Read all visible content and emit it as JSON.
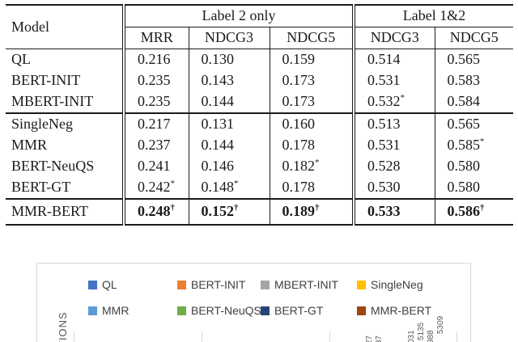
{
  "table": {
    "model_header": "Model",
    "groups": [
      {
        "label": "Label 2 only",
        "cols": [
          "MRR",
          "NDCG3",
          "NDCG5"
        ]
      },
      {
        "label": "Label 1&2",
        "cols": [
          "NDCG3",
          "NDCG5"
        ]
      }
    ],
    "sections": [
      {
        "rows": [
          {
            "model": "QL",
            "cells": [
              {
                "v": "0.216"
              },
              {
                "v": "0.130"
              },
              {
                "v": "0.159"
              },
              {
                "v": "0.514"
              },
              {
                "v": "0.565"
              }
            ]
          },
          {
            "model": "BERT-INIT",
            "cells": [
              {
                "v": "0.235"
              },
              {
                "v": "0.143"
              },
              {
                "v": "0.173"
              },
              {
                "v": "0.531"
              },
              {
                "v": "0.583"
              }
            ]
          },
          {
            "model": "MBERT-INIT",
            "cells": [
              {
                "v": "0.235"
              },
              {
                "v": "0.144"
              },
              {
                "v": "0.173"
              },
              {
                "v": "0.532",
                "s": "*"
              },
              {
                "v": "0.584"
              }
            ]
          }
        ]
      },
      {
        "rows": [
          {
            "model": "SingleNeg",
            "cells": [
              {
                "v": "0.217"
              },
              {
                "v": "0.131"
              },
              {
                "v": "0.160"
              },
              {
                "v": "0.513"
              },
              {
                "v": "0.565"
              }
            ]
          },
          {
            "model": "MMR",
            "cells": [
              {
                "v": "0.237"
              },
              {
                "v": "0.144"
              },
              {
                "v": "0.178"
              },
              {
                "v": "0.531"
              },
              {
                "v": "0.585",
                "s": "*"
              }
            ]
          },
          {
            "model": "BERT-NeuQS",
            "cells": [
              {
                "v": "0.241"
              },
              {
                "v": "0.146"
              },
              {
                "v": "0.182",
                "s": "*"
              },
              {
                "v": "0.528"
              },
              {
                "v": "0.580"
              }
            ]
          },
          {
            "model": "BERT-GT",
            "cells": [
              {
                "v": "0.242",
                "s": "*"
              },
              {
                "v": "0.148",
                "s": "*"
              },
              {
                "v": "0.178"
              },
              {
                "v": "0.530"
              },
              {
                "v": "0.580"
              }
            ]
          }
        ]
      },
      {
        "rows": [
          {
            "model": "MMR-BERT",
            "bold": true,
            "cells": [
              {
                "v": "0.248",
                "s": "†"
              },
              {
                "v": "0.152",
                "s": "†"
              },
              {
                "v": "0.189",
                "s": "†"
              },
              {
                "v": "0.533"
              },
              {
                "v": "0.586",
                "s": "†"
              }
            ]
          }
        ]
      }
    ]
  },
  "chart": {
    "legend": [
      [
        {
          "label": "QL",
          "color": "#4472C4"
        },
        {
          "label": "BERT-INIT",
          "color": "#ED7D31"
        },
        {
          "label": "MBERT-INIT",
          "color": "#A5A5A5"
        },
        {
          "label": "SingleNeg",
          "color": "#FFC000"
        }
      ],
      [
        {
          "label": "MMR",
          "color": "#5B9BD5"
        },
        {
          "label": "BERT-NeuQS",
          "color": "#70AD47"
        },
        {
          "label": "BERT-GT",
          "color": "#264478"
        },
        {
          "label": "MMR-BERT",
          "color": "#9E480E"
        }
      ]
    ],
    "y_axis_label_visible": "TIONS",
    "bar_value_labels_visible": [
      "27",
      "37",
      "031",
      "5135",
      "988",
      "5309"
    ],
    "border_color": "#d9d9d9"
  }
}
